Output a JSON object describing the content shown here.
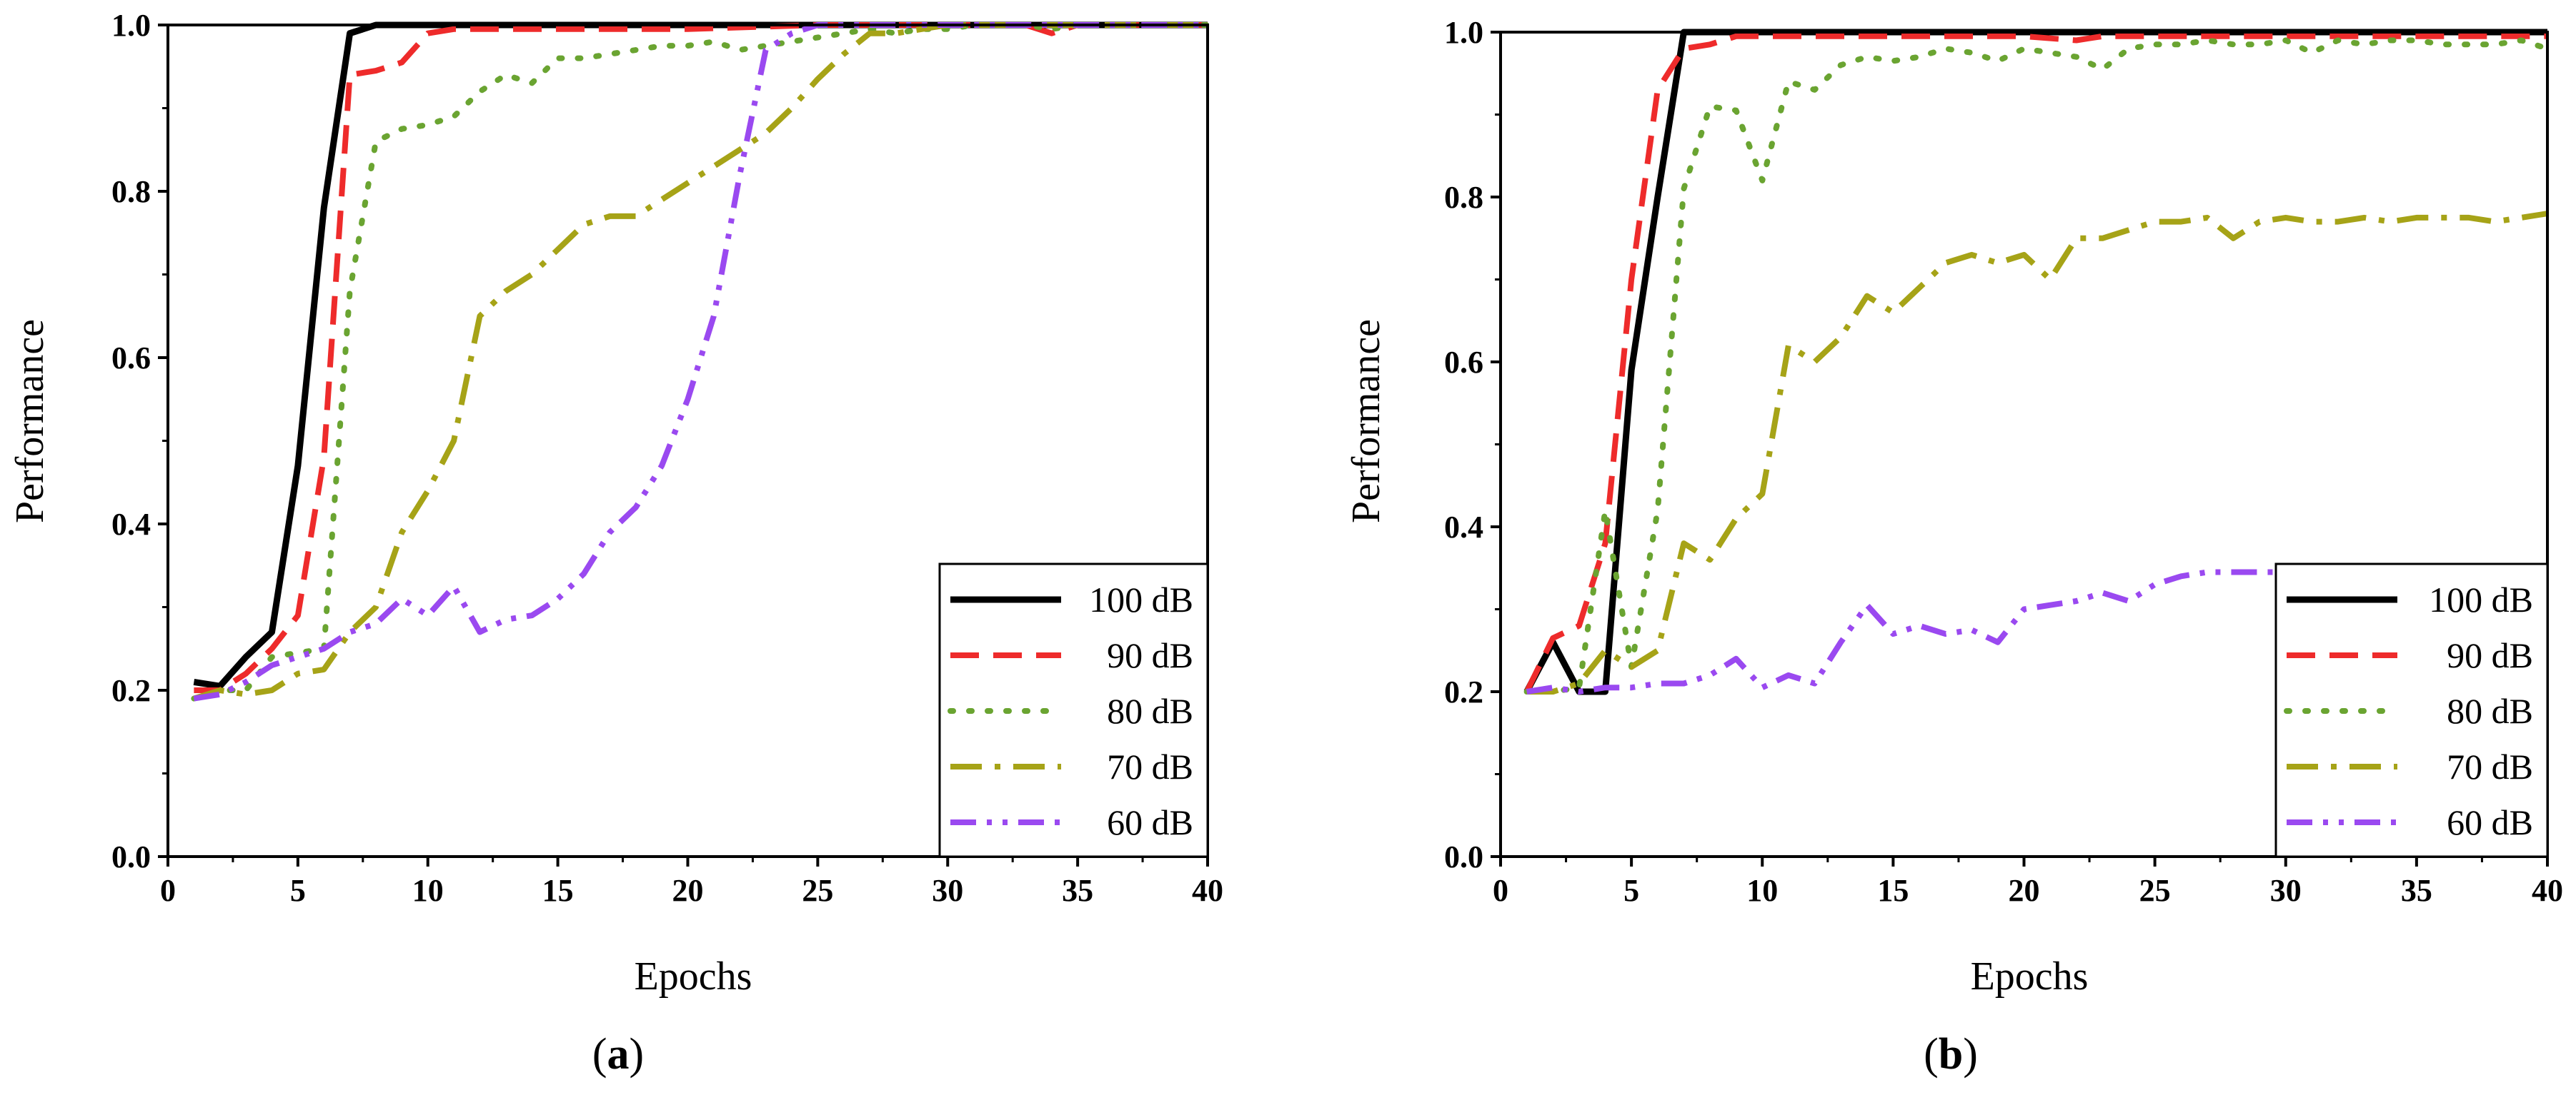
{
  "colors": {
    "s100": "#000000",
    "s90": "#ee2b2b",
    "s80": "#6aa431",
    "s70": "#a6a317",
    "s60": "#9a49f0"
  },
  "chart_data": [
    {
      "type": "line",
      "panel": "a",
      "label_open": "(",
      "label_letter": "a",
      "label_close": ")",
      "xlabel": "Epochs",
      "ylabel": "Performance",
      "xlim": [
        0,
        40
      ],
      "ylim": [
        0,
        1.0
      ],
      "xticks": [
        0,
        5,
        10,
        15,
        20,
        25,
        30,
        35,
        40
      ],
      "yticks": [
        0.0,
        0.2,
        0.4,
        0.6,
        0.8,
        1.0
      ],
      "legend_position": "bottom-right",
      "series": [
        {
          "name": "100 dB",
          "key": "s100",
          "dash": "solid",
          "x": [
            1,
            2,
            3,
            4,
            5,
            6,
            7,
            8,
            9,
            10,
            15,
            20,
            25,
            30,
            35,
            40
          ],
          "y": [
            0.21,
            0.205,
            0.24,
            0.27,
            0.47,
            0.78,
            0.99,
            1.0,
            1.0,
            1.0,
            1.0,
            1.0,
            1.0,
            1.0,
            1.0,
            1.0
          ]
        },
        {
          "name": "90 dB",
          "key": "s90",
          "dash": "dash",
          "x": [
            1,
            2,
            3,
            4,
            5,
            6,
            7,
            8,
            9,
            10,
            11,
            15,
            20,
            25,
            30,
            33,
            34,
            35,
            40
          ],
          "y": [
            0.2,
            0.2,
            0.22,
            0.25,
            0.29,
            0.48,
            0.94,
            0.945,
            0.955,
            0.99,
            0.995,
            0.995,
            0.995,
            1.0,
            1.0,
            1.0,
            0.99,
            1.0,
            1.0
          ]
        },
        {
          "name": "80 dB",
          "key": "s80",
          "dash": "dot",
          "x": [
            1,
            2,
            3,
            4,
            5,
            6,
            7,
            8,
            9,
            10,
            11,
            12,
            13,
            14,
            15,
            16,
            17,
            18,
            19,
            20,
            21,
            22,
            23,
            24,
            25,
            26,
            27,
            28,
            29,
            30,
            31,
            32,
            33,
            34,
            35,
            36,
            37,
            38,
            39,
            40
          ],
          "y": [
            0.19,
            0.2,
            0.2,
            0.24,
            0.245,
            0.25,
            0.68,
            0.86,
            0.875,
            0.88,
            0.89,
            0.92,
            0.94,
            0.93,
            0.96,
            0.96,
            0.965,
            0.97,
            0.975,
            0.975,
            0.98,
            0.97,
            0.975,
            0.98,
            0.985,
            0.99,
            0.995,
            0.99,
            0.995,
            0.995,
            1.0,
            1.0,
            1.0,
            0.995,
            1.0,
            1.0,
            1.0,
            1.0,
            1.0,
            1.0
          ]
        },
        {
          "name": "70 dB",
          "key": "s70",
          "dash": "dashdot",
          "x": [
            1,
            2,
            3,
            4,
            5,
            6,
            7,
            8,
            9,
            10,
            11,
            12,
            13,
            14,
            15,
            16,
            17,
            18,
            19,
            20,
            21,
            22,
            23,
            24,
            25,
            26,
            27,
            28,
            29,
            30,
            35,
            40
          ],
          "y": [
            0.19,
            0.2,
            0.195,
            0.2,
            0.22,
            0.225,
            0.27,
            0.3,
            0.39,
            0.44,
            0.5,
            0.65,
            0.68,
            0.7,
            0.73,
            0.76,
            0.77,
            0.77,
            0.79,
            0.81,
            0.83,
            0.85,
            0.87,
            0.9,
            0.935,
            0.965,
            0.99,
            0.99,
            0.995,
            1.0,
            1.0,
            1.0
          ]
        },
        {
          "name": "60 dB",
          "key": "s60",
          "dash": "dashdotdot",
          "x": [
            1,
            2,
            3,
            4,
            5,
            6,
            7,
            8,
            9,
            10,
            11,
            12,
            13,
            14,
            15,
            16,
            17,
            18,
            19,
            20,
            21,
            22,
            23,
            24,
            25,
            30,
            35,
            40
          ],
          "y": [
            0.19,
            0.195,
            0.21,
            0.23,
            0.24,
            0.25,
            0.27,
            0.28,
            0.31,
            0.29,
            0.325,
            0.27,
            0.285,
            0.29,
            0.31,
            0.34,
            0.39,
            0.42,
            0.47,
            0.55,
            0.65,
            0.82,
            0.97,
            0.99,
            1.0,
            1.0,
            1.0,
            1.0
          ]
        }
      ]
    },
    {
      "type": "line",
      "panel": "b",
      "label_open": "(",
      "label_letter": "b",
      "label_close": ")",
      "xlabel": "Epochs",
      "ylabel": "Performance",
      "xlim": [
        0,
        40
      ],
      "ylim": [
        0,
        1.0
      ],
      "xticks": [
        0,
        5,
        10,
        15,
        20,
        25,
        30,
        35,
        40
      ],
      "yticks": [
        0.0,
        0.2,
        0.4,
        0.6,
        0.8,
        1.0
      ],
      "legend_position": "bottom-right",
      "series": [
        {
          "name": "100 dB",
          "key": "s100",
          "dash": "solid",
          "x": [
            1,
            2,
            3,
            4,
            5,
            6,
            7,
            8,
            10,
            15,
            20,
            25,
            30,
            35,
            40
          ],
          "y": [
            0.2,
            0.26,
            0.2,
            0.2,
            0.59,
            0.8,
            1.0,
            1.0,
            1.0,
            1.0,
            1.0,
            1.0,
            1.0,
            1.0,
            1.0
          ]
        },
        {
          "name": "90 dB",
          "key": "s90",
          "dash": "dash",
          "x": [
            1,
            2,
            3,
            4,
            5,
            6,
            7,
            8,
            9,
            10,
            15,
            20,
            22,
            23,
            25,
            30,
            35,
            40
          ],
          "y": [
            0.2,
            0.265,
            0.28,
            0.38,
            0.7,
            0.93,
            0.98,
            0.985,
            0.995,
            0.995,
            0.995,
            0.995,
            0.99,
            0.995,
            0.995,
            0.995,
            0.995,
            0.995
          ]
        },
        {
          "name": "80 dB",
          "key": "s80",
          "dash": "dot",
          "x": [
            1,
            2,
            3,
            4,
            5,
            6,
            7,
            8,
            9,
            10,
            11,
            12,
            13,
            14,
            15,
            16,
            17,
            18,
            19,
            20,
            21,
            22,
            23,
            24,
            25,
            26,
            27,
            28,
            29,
            30,
            31,
            32,
            33,
            34,
            35,
            36,
            37,
            38,
            39,
            40
          ],
          "y": [
            0.2,
            0.2,
            0.205,
            0.42,
            0.23,
            0.42,
            0.81,
            0.91,
            0.905,
            0.82,
            0.94,
            0.93,
            0.96,
            0.97,
            0.965,
            0.97,
            0.98,
            0.975,
            0.965,
            0.98,
            0.975,
            0.97,
            0.955,
            0.98,
            0.985,
            0.985,
            0.99,
            0.985,
            0.985,
            0.99,
            0.975,
            0.99,
            0.985,
            0.99,
            0.99,
            0.985,
            0.985,
            0.985,
            0.99,
            0.98
          ]
        },
        {
          "name": "70 dB",
          "key": "s70",
          "dash": "dashdot",
          "x": [
            1,
            2,
            3,
            4,
            5,
            6,
            7,
            8,
            9,
            10,
            11,
            12,
            13,
            14,
            15,
            16,
            17,
            18,
            19,
            20,
            21,
            22,
            23,
            24,
            25,
            26,
            27,
            28,
            29,
            30,
            31,
            32,
            33,
            34,
            35,
            36,
            37,
            38,
            39,
            40
          ],
          "y": [
            0.2,
            0.2,
            0.21,
            0.25,
            0.23,
            0.25,
            0.38,
            0.36,
            0.41,
            0.44,
            0.62,
            0.6,
            0.63,
            0.68,
            0.66,
            0.69,
            0.72,
            0.73,
            0.72,
            0.73,
            0.7,
            0.75,
            0.75,
            0.76,
            0.77,
            0.77,
            0.775,
            0.75,
            0.77,
            0.775,
            0.77,
            0.77,
            0.775,
            0.77,
            0.775,
            0.775,
            0.775,
            0.77,
            0.775,
            0.78
          ]
        },
        {
          "name": "60 dB",
          "key": "s60",
          "dash": "dashdotdot",
          "x": [
            1,
            2,
            3,
            4,
            5,
            6,
            7,
            8,
            9,
            10,
            11,
            12,
            13,
            14,
            15,
            16,
            17,
            18,
            19,
            20,
            21,
            22,
            23,
            24,
            25,
            26,
            27,
            28,
            29,
            30
          ],
          "y": [
            0.2,
            0.205,
            0.2,
            0.205,
            0.205,
            0.21,
            0.21,
            0.22,
            0.24,
            0.205,
            0.22,
            0.21,
            0.26,
            0.305,
            0.27,
            0.28,
            0.27,
            0.275,
            0.26,
            0.3,
            0.305,
            0.31,
            0.32,
            0.31,
            0.33,
            0.34,
            0.345,
            0.345,
            0.345,
            0.345
          ]
        }
      ]
    }
  ]
}
